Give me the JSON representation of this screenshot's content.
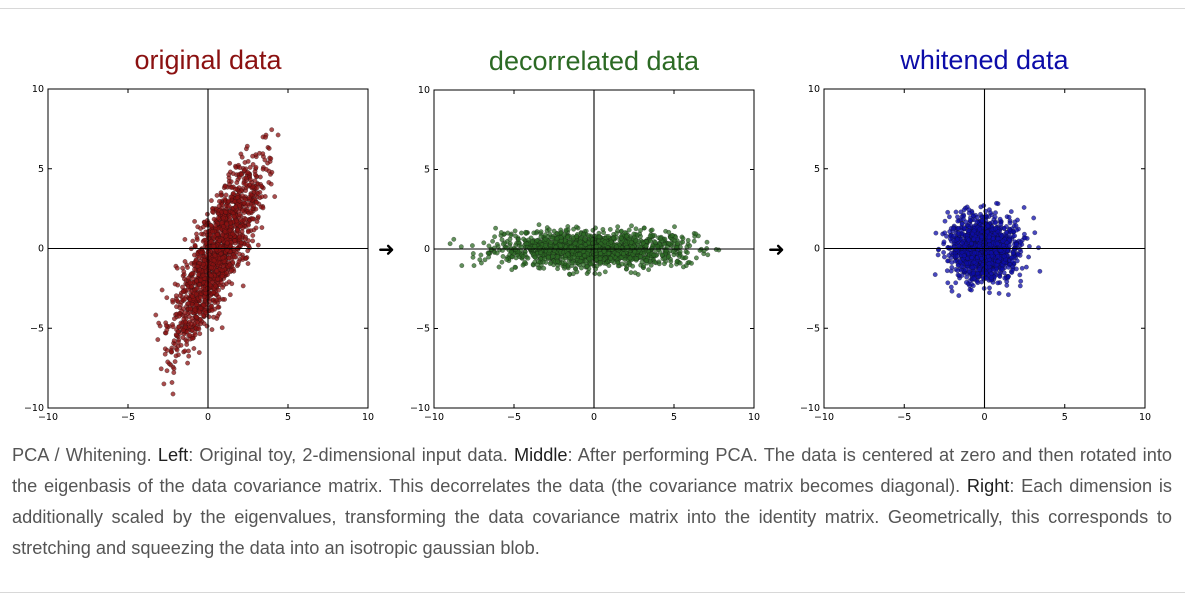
{
  "colors": {
    "original": "#8b1111",
    "decorrelated": "#2c6a24",
    "whitened": "#0c0ca8",
    "axis": "#000000",
    "caption_text": "#555555",
    "caption_bold": "#1f1f1f"
  },
  "arrows": [
    "➜",
    "➜"
  ],
  "chart_data": [
    {
      "type": "scatter",
      "title": "original data",
      "title_color": "#8b1111",
      "xlim": [
        -10,
        10
      ],
      "ylim": [
        -10,
        10
      ],
      "xticks": [
        "−10",
        "−5",
        "0",
        "5",
        "10"
      ],
      "yticks": [
        "10",
        "5",
        "0",
        "−5",
        "−10"
      ],
      "grid": false,
      "distribution": {
        "points": 1500,
        "mean": [
          0.6,
          -0.3
        ],
        "std_major": 3.2,
        "std_minor": 0.7,
        "angle_deg": 67,
        "x_range_shown": [
          -3.5,
          4.5
        ],
        "y_range_shown": [
          -9.3,
          7.5
        ]
      }
    },
    {
      "type": "scatter",
      "title": "decorrelated data",
      "title_color": "#2c6a24",
      "xlim": [
        -10,
        10
      ],
      "ylim": [
        -10,
        10
      ],
      "xticks": [
        "−10",
        "−5",
        "0",
        "5",
        "10"
      ],
      "yticks": [
        "10",
        "5",
        "0",
        "−5",
        "−10"
      ],
      "grid": false,
      "distribution": {
        "points": 1500,
        "mean": [
          0,
          0
        ],
        "std_x": 3.0,
        "std_y": 0.55,
        "x_range_shown": [
          -9,
          8
        ],
        "y_range_shown": [
          -1.7,
          1.8
        ]
      }
    },
    {
      "type": "scatter",
      "title": "whitened data",
      "title_color": "#0c0ca8",
      "xlim": [
        -10,
        10
      ],
      "ylim": [
        -10,
        10
      ],
      "xticks": [
        "−10",
        "−5",
        "0",
        "5",
        "10"
      ],
      "yticks": [
        "10",
        "5",
        "0",
        "−5",
        "−10"
      ],
      "grid": false,
      "distribution": {
        "points": 1500,
        "mean": [
          0,
          0
        ],
        "std_x": 1.0,
        "std_y": 1.0,
        "x_range_shown": [
          -3.2,
          3.5
        ],
        "y_range_shown": [
          -3.2,
          3.2
        ]
      }
    }
  ],
  "caption": {
    "prefix": "PCA / Whitening. ",
    "left_label": "Left",
    "left_text": ": Original toy, 2-dimensional input data. ",
    "middle_label": "Middle",
    "middle_text": ": After performing PCA. The data is centered at zero and then rotated into the eigenbasis of the data covariance matrix. This decorrelates the data (the covariance matrix becomes diagonal). ",
    "right_label": "Right",
    "right_text": ": Each dimension is additionally scaled by the eigenvalues, transforming the data covariance matrix into the identity matrix. Geometrically, this corresponds to stretching and squeezing the data into an isotropic gaussian blob."
  }
}
